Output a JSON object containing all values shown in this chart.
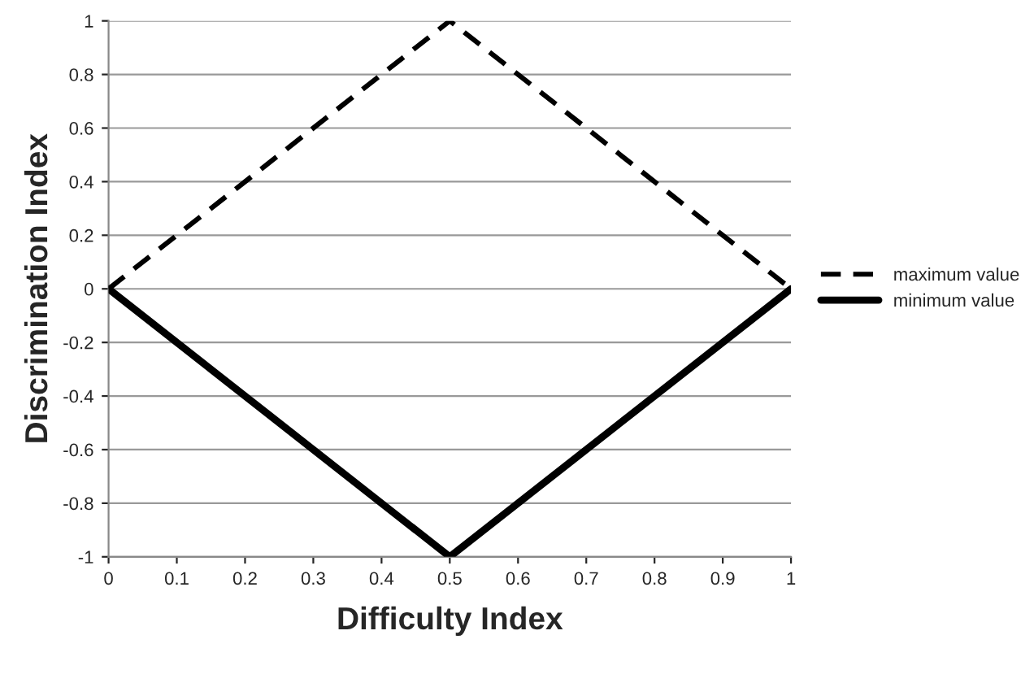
{
  "chart_data": {
    "type": "line",
    "xlabel": "Difficulty Index",
    "ylabel": "Discrimination Index",
    "x": [
      0,
      0.5,
      1
    ],
    "series": [
      {
        "name": "maximum value",
        "color": "#000000",
        "values": [
          0,
          1,
          0
        ],
        "line_style": "dashed"
      },
      {
        "name": "minimum value",
        "color": "#000000",
        "values": [
          0,
          -1,
          0
        ],
        "line_style": "solid"
      }
    ],
    "xlim": [
      0,
      1
    ],
    "xticks": [
      0,
      0.1,
      0.2,
      0.3,
      0.4,
      0.5,
      0.6,
      0.7,
      0.8,
      0.9,
      1
    ],
    "ylim": [
      -1,
      1
    ],
    "yticks": [
      -1,
      -0.8,
      -0.6,
      -0.4,
      -0.2,
      0,
      0.2,
      0.4,
      0.6,
      0.8,
      1
    ],
    "grid": "y",
    "legend": "right",
    "marker": "none"
  }
}
